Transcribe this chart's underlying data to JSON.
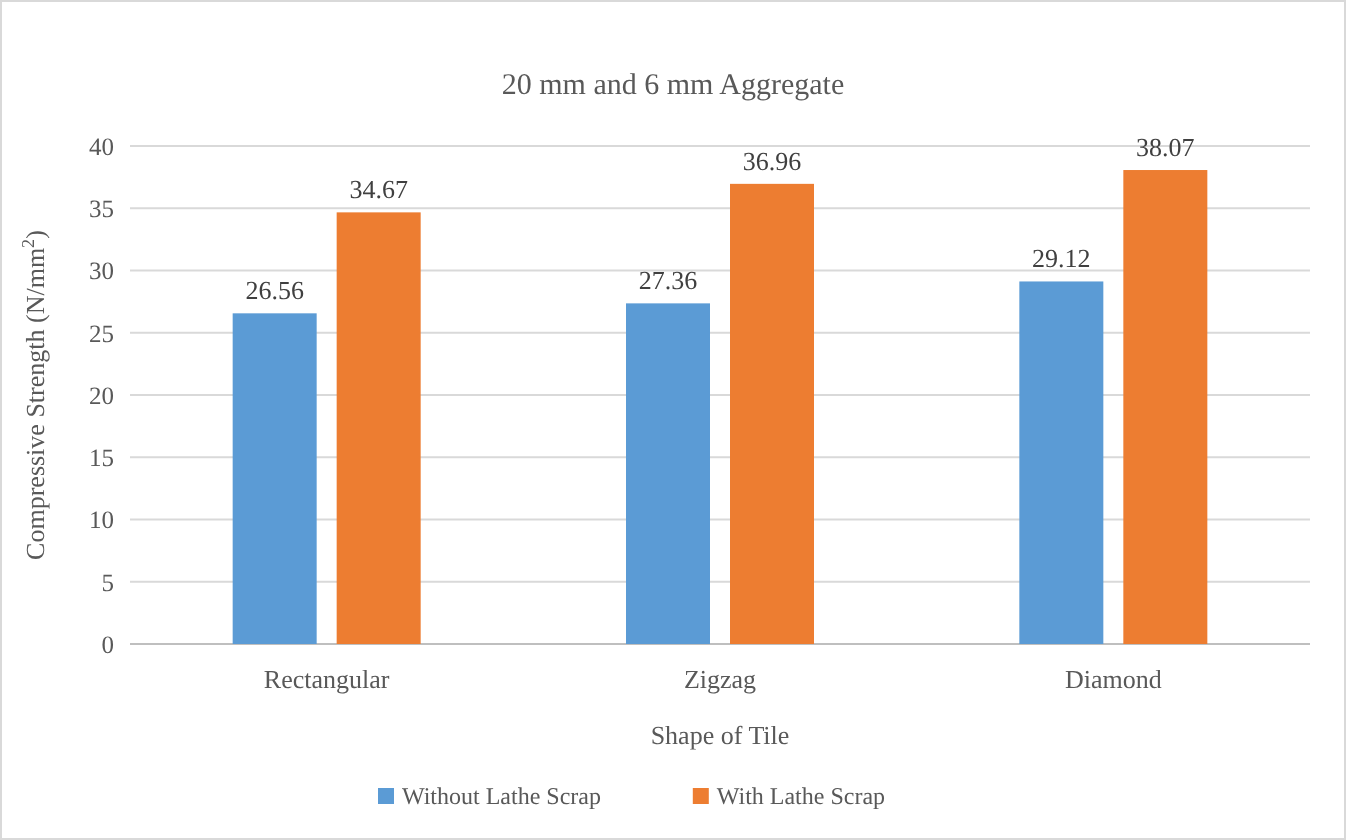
{
  "chart_data": {
    "type": "bar",
    "title": "20 mm and 6 mm Aggregate",
    "xlabel": "Shape of Tile",
    "ylabel": "Compressive Strength (N/mm$^{2}$)",
    "categories": [
      "Rectangular",
      "Zigzag",
      "Diamond"
    ],
    "series": [
      {
        "name": "Without Lathe Scrap",
        "color": "#5b9bd5",
        "values": [
          26.56,
          27.36,
          29.12
        ]
      },
      {
        "name": "With Lathe Scrap",
        "color": "#ed7d31",
        "values": [
          34.67,
          36.96,
          38.07
        ]
      }
    ],
    "ylim": [
      0,
      40
    ],
    "yticks": [
      0,
      5,
      10,
      15,
      20,
      25,
      30,
      35,
      40
    ],
    "grid": "y",
    "legend": "bottom",
    "data_labels": true
  }
}
